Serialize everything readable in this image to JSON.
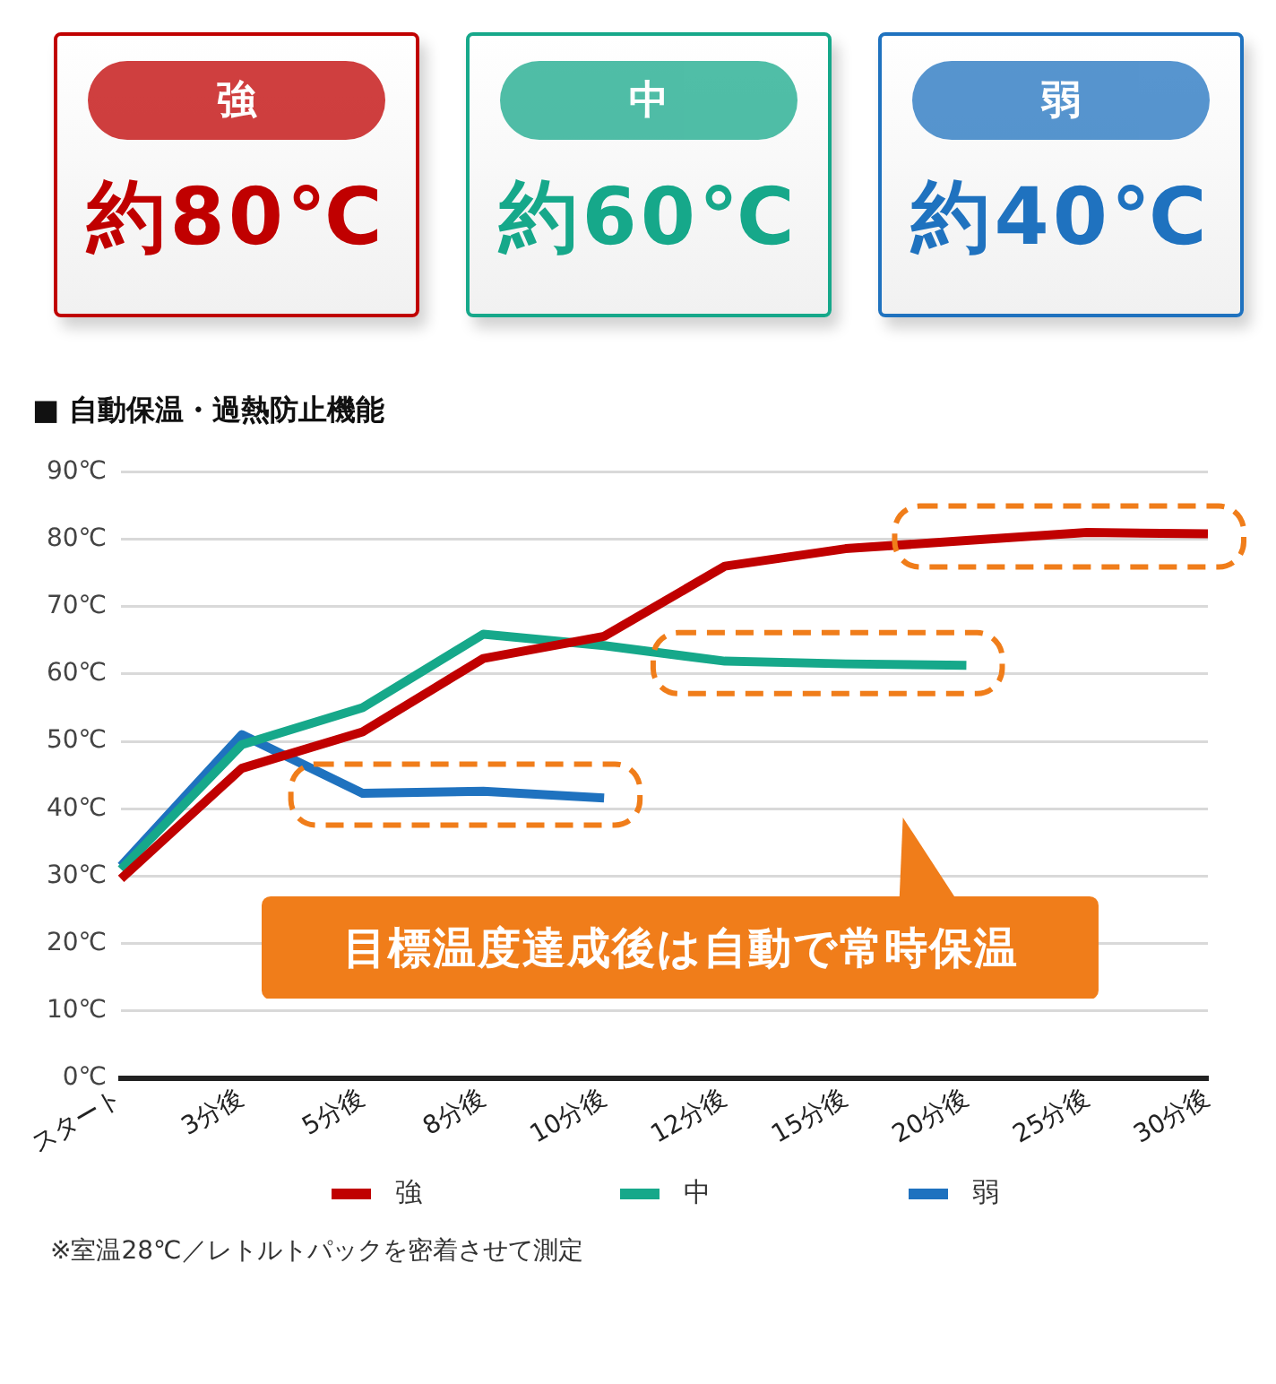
{
  "chart_data": [
    {
      "type": "other",
      "annotations": [
        "強",
        "約80℃",
        "中",
        "約60℃",
        "弱",
        "約40℃"
      ]
    },
    {
      "type": "line",
      "title": "■ 自動保温・過熱防止機能",
      "categories": [
        "スタート",
        "3分後",
        "5分後",
        "8分後",
        "10分後",
        "12分後",
        "15分後",
        "20分後",
        "25分後",
        "30分後"
      ],
      "series": [
        {
          "name": "強",
          "color": "#c00000",
          "values": [
            29.6,
            46,
            51.4,
            62.3,
            65.6,
            76,
            78.6,
            79.8,
            81,
            80.8
          ]
        },
        {
          "name": "中",
          "color": "#16a88a",
          "values": [
            31,
            49.5,
            55,
            65.9,
            64.2,
            61.9,
            61.5,
            61.3,
            null,
            null
          ]
        },
        {
          "name": "弱",
          "color": "#1f72bf",
          "values": [
            31.5,
            51,
            42.3,
            42.6,
            41.6,
            null,
            null,
            null,
            null,
            null
          ]
        }
      ],
      "ylim": [
        0,
        90
      ],
      "yticks": [
        {
          "value": 0,
          "label": "0℃"
        },
        {
          "value": 10,
          "label": "10℃"
        },
        {
          "value": 20,
          "label": "20℃"
        },
        {
          "value": 30,
          "label": "30℃"
        },
        {
          "value": 40,
          "label": "40℃"
        },
        {
          "value": 50,
          "label": "50℃"
        },
        {
          "value": 60,
          "label": "60℃"
        },
        {
          "value": 70,
          "label": "70℃"
        },
        {
          "value": 80,
          "label": "80℃"
        },
        {
          "value": 90,
          "label": "90℃"
        }
      ],
      "grid": "y",
      "legend": "bottom",
      "marker": "none",
      "line_style": "solid",
      "annotations": [
        "目標温度達成後は自動で常時保温",
        "※室温28℃／レトルトパックを密着させて測定"
      ]
    }
  ]
}
